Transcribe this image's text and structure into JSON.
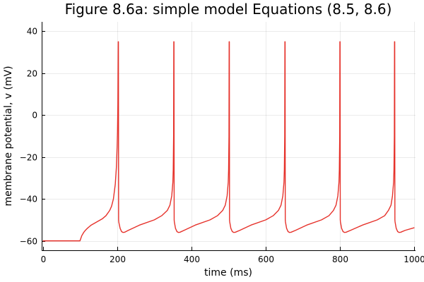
{
  "chart_data": {
    "type": "line",
    "title": "Figure 8.6a: simple model Equations (8.5, 8.6)",
    "xlabel": "time (ms)",
    "ylabel": "membrane potential, v (mV)",
    "xlim": [
      -3,
      1003
    ],
    "ylim": [
      -64.5,
      44.5
    ],
    "xticks": [
      0,
      200,
      400,
      600,
      800,
      1000
    ],
    "xtick_labels": [
      "0",
      "200",
      "400",
      "600",
      "800",
      "1000"
    ],
    "yticks": [
      -60,
      -40,
      -20,
      0,
      20,
      40
    ],
    "ytick_labels": [
      "−60",
      "−40",
      "−20",
      "0",
      "20",
      "40"
    ],
    "grid": true,
    "legend": "none",
    "series": [
      {
        "color": "#e6322b",
        "x": [
          0,
          100,
          102,
          105,
          110,
          115,
          120,
          130,
          140,
          150,
          160,
          170,
          180,
          185,
          190,
          195,
          198,
          200,
          201,
          202,
          203,
          203.5,
          204,
          204.5,
          205,
          208,
          212,
          216,
          220,
          230,
          260,
          300,
          320,
          335,
          342,
          347,
          350,
          351,
          352,
          352.5,
          353,
          353.5,
          354,
          357,
          361,
          365,
          369,
          380,
          410,
          450,
          470,
          484,
          491,
          496,
          499,
          500,
          501,
          501.5,
          502,
          502.5,
          503,
          506,
          510,
          514,
          518,
          530,
          560,
          600,
          620,
          634,
          641,
          646,
          649,
          650,
          651,
          651.5,
          652,
          652.5,
          653,
          656,
          660,
          664,
          668,
          680,
          710,
          750,
          770,
          782,
          789,
          794,
          797,
          798,
          799,
          799.5,
          800,
          800.5,
          801,
          804,
          808,
          812,
          816,
          828,
          860,
          900,
          920,
          930,
          937,
          941,
          944,
          945,
          946,
          946.5,
          947,
          947.5,
          948,
          951,
          955,
          959,
          963,
          975,
          1000
        ],
        "y": [
          -60,
          -60,
          -59,
          -57.5,
          -56,
          -54.9,
          -54,
          -52.5,
          -51.5,
          -50.5,
          -49.5,
          -48,
          -45.5,
          -43.5,
          -40,
          -33,
          -25,
          -15,
          -8,
          5,
          35,
          35,
          -50,
          -51,
          -51.5,
          -54,
          -55.6,
          -56,
          -55.9,
          -55,
          -52.5,
          -50,
          -48,
          -45.5,
          -43,
          -38.5,
          -32,
          -26,
          -10,
          35,
          35,
          -50,
          -51,
          -54,
          -55.6,
          -56,
          -55.9,
          -55,
          -52.5,
          -50,
          -48,
          -45.5,
          -43,
          -38.5,
          -32,
          -26,
          -10,
          35,
          35,
          -50,
          -51,
          -54,
          -55.6,
          -56,
          -55.9,
          -55,
          -52.5,
          -50,
          -48,
          -45.5,
          -43,
          -38.5,
          -32,
          -26,
          -10,
          35,
          35,
          -50,
          -51,
          -54,
          -55.6,
          -56,
          -55.9,
          -55,
          -52.5,
          -50,
          -48,
          -45.5,
          -43,
          -38.5,
          -32,
          -26,
          -10,
          35,
          35,
          -50,
          -51,
          -54,
          -55.6,
          -56,
          -55.9,
          -55,
          -52.5,
          -50,
          -48,
          -45.5,
          -43,
          -38.5,
          -32,
          -26,
          -10,
          35,
          35,
          -50,
          -51,
          -54,
          -55.6,
          -56,
          -55.9,
          -55,
          -53.7
        ]
      }
    ]
  }
}
